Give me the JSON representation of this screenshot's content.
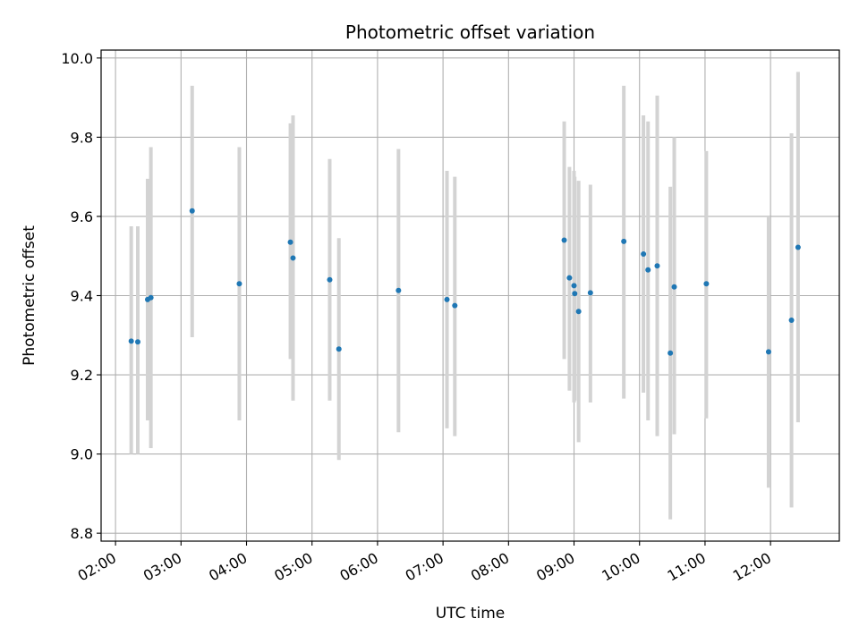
{
  "chart_data": {
    "type": "scatter",
    "title": "Photometric offset variation",
    "xlabel": "UTC time",
    "ylabel": "Photometric offset",
    "x_unit": "hours (UTC)",
    "xlim": [
      1.78,
      13.05
    ],
    "ylim": [
      8.78,
      10.02
    ],
    "grid": true,
    "x_tick_values": [
      2,
      3,
      4,
      5,
      6,
      7,
      8,
      9,
      10,
      11,
      12
    ],
    "x_tick_labels": [
      "02:00",
      "03:00",
      "04:00",
      "05:00",
      "06:00",
      "07:00",
      "08:00",
      "09:00",
      "10:00",
      "11:00",
      "12:00"
    ],
    "y_tick_values": [
      8.8,
      9.0,
      9.2,
      9.4,
      9.6,
      9.8,
      10.0
    ],
    "y_tick_labels": [
      "8.8",
      "9.0",
      "9.2",
      "9.4",
      "9.6",
      "9.8",
      "10.0"
    ],
    "colors": {
      "point": "#1f77b4",
      "errorbar": "#d3d3d3",
      "grid": "#b0b0b0"
    },
    "points": [
      {
        "x": 2.24,
        "y": 9.285,
        "low": 9.0,
        "high": 9.575
      },
      {
        "x": 2.34,
        "y": 9.283,
        "low": 9.0,
        "high": 9.575
      },
      {
        "x": 2.49,
        "y": 9.39,
        "low": 9.085,
        "high": 9.695
      },
      {
        "x": 2.54,
        "y": 9.395,
        "low": 9.015,
        "high": 9.775
      },
      {
        "x": 3.17,
        "y": 9.614,
        "low": 9.295,
        "high": 9.93
      },
      {
        "x": 3.89,
        "y": 9.43,
        "low": 9.085,
        "high": 9.775
      },
      {
        "x": 4.67,
        "y": 9.535,
        "low": 9.24,
        "high": 9.835
      },
      {
        "x": 4.71,
        "y": 9.495,
        "low": 9.135,
        "high": 9.855
      },
      {
        "x": 5.27,
        "y": 9.44,
        "low": 9.135,
        "high": 9.745
      },
      {
        "x": 5.41,
        "y": 9.265,
        "low": 8.985,
        "high": 9.545
      },
      {
        "x": 6.32,
        "y": 9.413,
        "low": 9.055,
        "high": 9.77
      },
      {
        "x": 7.06,
        "y": 9.39,
        "low": 9.065,
        "high": 9.715
      },
      {
        "x": 7.18,
        "y": 9.375,
        "low": 9.045,
        "high": 9.7
      },
      {
        "x": 8.85,
        "y": 9.54,
        "low": 9.24,
        "high": 9.84
      },
      {
        "x": 8.93,
        "y": 9.445,
        "low": 9.16,
        "high": 9.725
      },
      {
        "x": 9.0,
        "y": 9.425,
        "low": 9.13,
        "high": 9.715
      },
      {
        "x": 9.01,
        "y": 9.405,
        "low": 9.135,
        "high": 9.7
      },
      {
        "x": 9.07,
        "y": 9.36,
        "low": 9.03,
        "high": 9.69
      },
      {
        "x": 9.25,
        "y": 9.407,
        "low": 9.13,
        "high": 9.68
      },
      {
        "x": 9.76,
        "y": 9.537,
        "low": 9.14,
        "high": 9.93
      },
      {
        "x": 10.06,
        "y": 9.505,
        "low": 9.155,
        "high": 9.855
      },
      {
        "x": 10.13,
        "y": 9.465,
        "low": 9.085,
        "high": 9.84
      },
      {
        "x": 10.27,
        "y": 9.475,
        "low": 9.045,
        "high": 9.905
      },
      {
        "x": 10.47,
        "y": 9.255,
        "low": 8.835,
        "high": 9.675
      },
      {
        "x": 10.53,
        "y": 9.422,
        "low": 9.05,
        "high": 9.8
      },
      {
        "x": 11.02,
        "y": 9.43,
        "low": 9.09,
        "high": 9.765
      },
      {
        "x": 11.97,
        "y": 9.258,
        "low": 8.915,
        "high": 9.6
      },
      {
        "x": 12.32,
        "y": 9.338,
        "low": 8.865,
        "high": 9.81
      },
      {
        "x": 12.42,
        "y": 9.522,
        "low": 9.08,
        "high": 9.965
      }
    ]
  }
}
